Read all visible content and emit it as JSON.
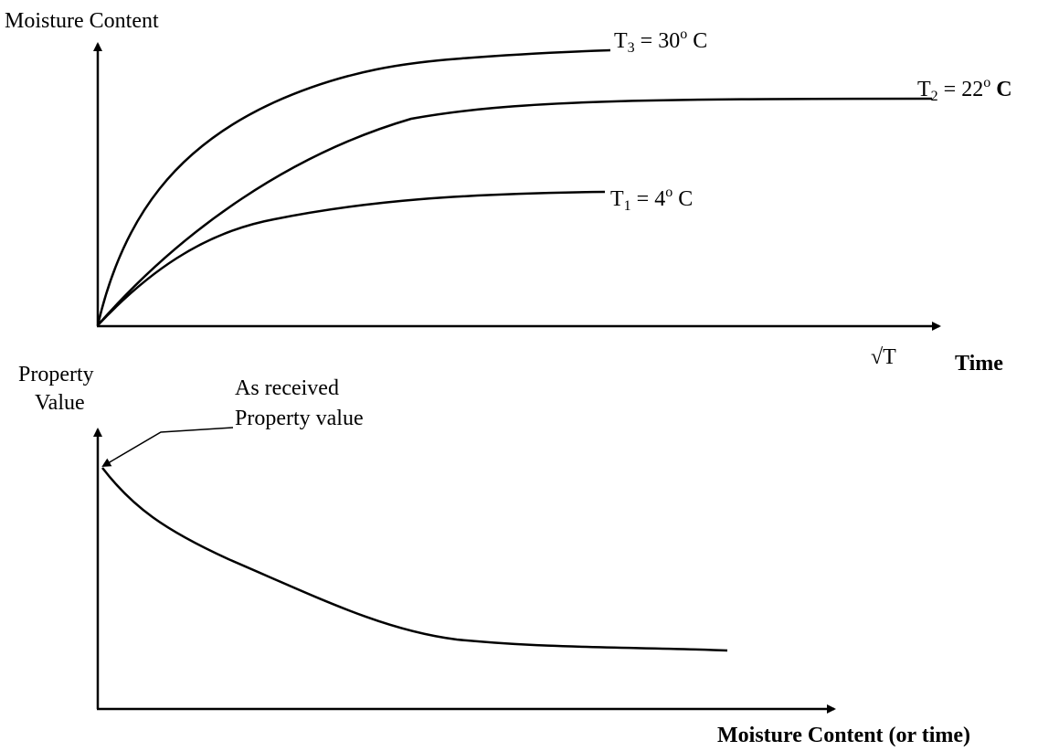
{
  "top_plot": {
    "y_label": "Moisture Content",
    "curves": [
      {
        "base": "T",
        "sub": "3",
        "mid": " = 30",
        "sup": "o",
        "unit": " C"
      },
      {
        "base": "T",
        "sub": "2",
        "mid": " = 22",
        "sup": "o",
        "unit": " C"
      },
      {
        "base": "T",
        "sub": "1",
        "mid": " = 4",
        "sup": "o",
        "unit": " C"
      }
    ],
    "x_labels": [
      "√T",
      "Time"
    ]
  },
  "bottom_plot": {
    "y_label": [
      "Property",
      "Value"
    ],
    "annotation": [
      "As received",
      "Property value"
    ],
    "x_label": "Moisture Content (or time)"
  }
}
